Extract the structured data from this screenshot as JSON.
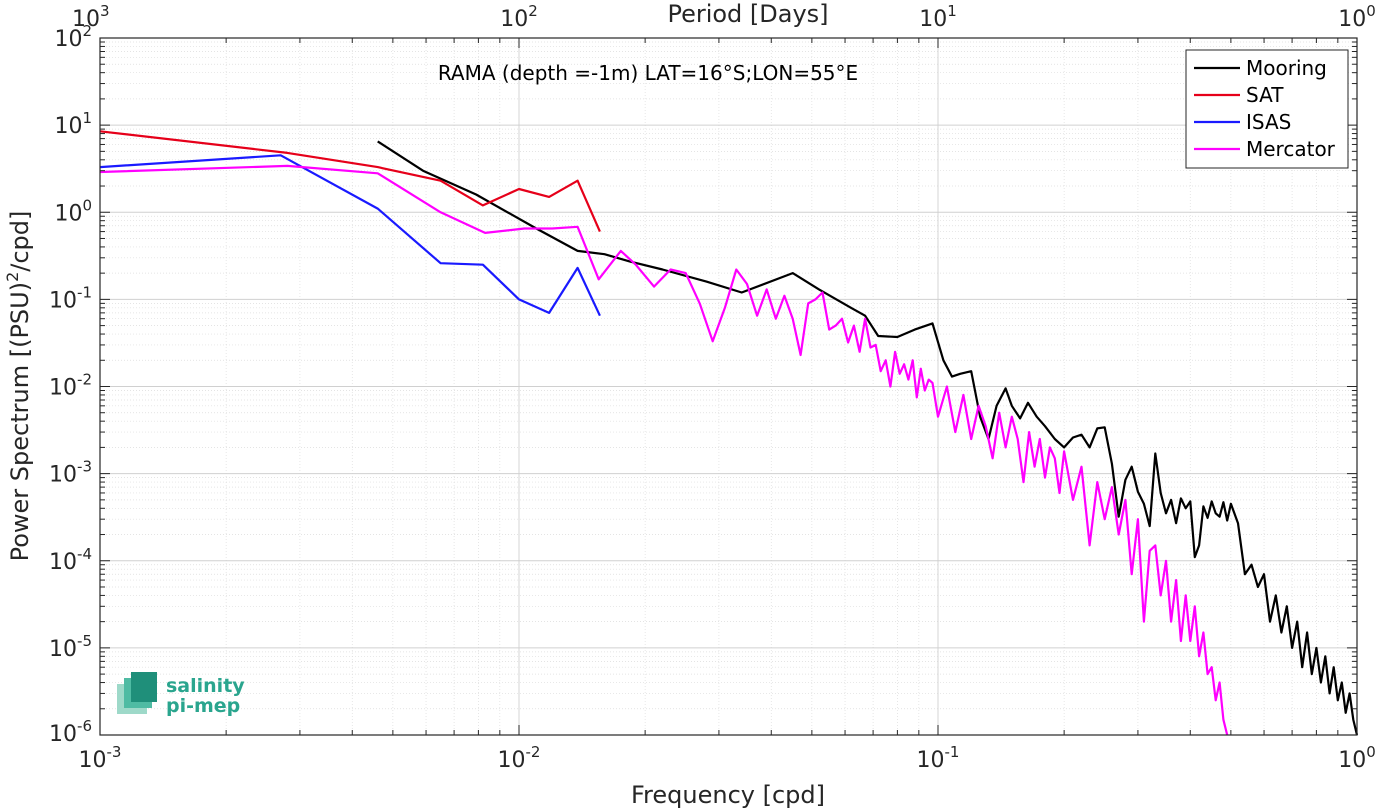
{
  "chart_data": {
    "type": "line",
    "title": "",
    "xlabel": "Frequency [cpd]",
    "ylabel": "Power Spectrum [(PSU)",
    "ylabel_sup": "2",
    "ylabel_suffix": "/cpd]",
    "top_xlabel": "Period [Days]",
    "xscale": "log",
    "yscale": "log",
    "xlim": [
      0.001,
      1
    ],
    "ylim": [
      1e-06,
      100
    ],
    "grid": true,
    "annotation": "RAMA (depth =-1m) LAT=16°S;LON=55°E",
    "x_ticks": [
      {
        "base": "10",
        "exp": "-3"
      },
      {
        "base": "10",
        "exp": "-2"
      },
      {
        "base": "10",
        "exp": "-1"
      },
      {
        "base": "10",
        "exp": "0"
      }
    ],
    "top_ticks": [
      {
        "base": "10",
        "exp": "3"
      },
      {
        "base": "10",
        "exp": "2"
      },
      {
        "base": "10",
        "exp": "1"
      },
      {
        "base": "10",
        "exp": "0"
      }
    ],
    "y_ticks": [
      {
        "base": "10",
        "exp": "2"
      },
      {
        "base": "10",
        "exp": "1"
      },
      {
        "base": "10",
        "exp": "0"
      },
      {
        "base": "10",
        "exp": "-1"
      },
      {
        "base": "10",
        "exp": "-2"
      },
      {
        "base": "10",
        "exp": "-3"
      },
      {
        "base": "10",
        "exp": "-4"
      },
      {
        "base": "10",
        "exp": "-5"
      },
      {
        "base": "10",
        "exp": "-6"
      }
    ],
    "legend_position": "top-right",
    "series": [
      {
        "name": "Mooring",
        "color": "#000000",
        "x": [
          0.0046,
          0.0059,
          0.0079,
          0.011,
          0.0138,
          0.016,
          0.0185,
          0.022,
          0.028,
          0.034,
          0.045,
          0.052,
          0.062,
          0.067,
          0.072,
          0.08,
          0.088,
          0.097,
          0.103,
          0.108,
          0.113,
          0.12,
          0.126,
          0.132,
          0.138,
          0.145,
          0.15,
          0.157,
          0.164,
          0.172,
          0.18,
          0.19,
          0.2,
          0.21,
          0.22,
          0.23,
          0.24,
          0.25,
          0.26,
          0.27,
          0.28,
          0.29,
          0.3,
          0.31,
          0.32,
          0.33,
          0.34,
          0.35,
          0.36,
          0.37,
          0.38,
          0.39,
          0.4,
          0.41,
          0.42,
          0.43,
          0.44,
          0.45,
          0.46,
          0.47,
          0.48,
          0.49,
          0.5,
          0.52,
          0.54,
          0.56,
          0.58,
          0.6,
          0.62,
          0.64,
          0.66,
          0.68,
          0.7,
          0.72,
          0.74,
          0.76,
          0.78,
          0.8,
          0.82,
          0.84,
          0.86,
          0.88,
          0.9,
          0.92,
          0.94,
          0.96,
          0.98,
          1.0
        ],
        "values": [
          6.5,
          3.0,
          1.6,
          0.65,
          0.36,
          0.33,
          0.27,
          0.22,
          0.16,
          0.12,
          0.2,
          0.13,
          0.08,
          0.065,
          0.038,
          0.037,
          0.045,
          0.053,
          0.02,
          0.013,
          0.014,
          0.015,
          0.0045,
          0.0025,
          0.006,
          0.0095,
          0.006,
          0.0043,
          0.0065,
          0.0045,
          0.0035,
          0.0025,
          0.002,
          0.0026,
          0.0028,
          0.002,
          0.0033,
          0.0034,
          0.0013,
          0.00032,
          0.00085,
          0.0012,
          0.00062,
          0.00045,
          0.00025,
          0.0017,
          0.0006,
          0.00035,
          0.0005,
          0.00027,
          0.00052,
          0.0004,
          0.00048,
          0.00011,
          0.00015,
          0.00042,
          0.00031,
          0.00048,
          0.00035,
          0.00032,
          0.00047,
          0.00029,
          0.00045,
          0.00027,
          7e-05,
          9e-05,
          5e-05,
          7e-05,
          2e-05,
          4e-05,
          1.5e-05,
          3e-05,
          1e-05,
          2e-05,
          6e-06,
          1.5e-05,
          5e-06,
          1e-05,
          4e-06,
          8e-06,
          3e-06,
          6e-06,
          2.5e-06,
          4e-06,
          1.8e-06,
          3e-06,
          1.5e-06,
          1e-06
        ]
      },
      {
        "name": "SAT",
        "color": "#e6001a",
        "x": [
          0.001,
          0.0028,
          0.0046,
          0.0065,
          0.0082,
          0.01,
          0.0118,
          0.0138,
          0.0156
        ],
        "values": [
          8.5,
          4.8,
          3.3,
          2.3,
          1.2,
          1.85,
          1.5,
          2.3,
          0.6
        ]
      },
      {
        "name": "ISAS",
        "color": "#1a1aff",
        "x": [
          0.001,
          0.0027,
          0.0046,
          0.0065,
          0.0082,
          0.01,
          0.0118,
          0.0138,
          0.0156
        ],
        "values": [
          3.3,
          4.5,
          1.1,
          0.26,
          0.25,
          0.1,
          0.07,
          0.23,
          0.065
        ]
      },
      {
        "name": "Mercator",
        "color": "#ff00ff",
        "x": [
          0.001,
          0.0028,
          0.0046,
          0.0065,
          0.0083,
          0.0103,
          0.012,
          0.0138,
          0.0155,
          0.0175,
          0.019,
          0.021,
          0.023,
          0.025,
          0.027,
          0.029,
          0.031,
          0.033,
          0.035,
          0.037,
          0.039,
          0.041,
          0.043,
          0.045,
          0.047,
          0.049,
          0.051,
          0.053,
          0.055,
          0.057,
          0.059,
          0.061,
          0.063,
          0.065,
          0.067,
          0.069,
          0.071,
          0.073,
          0.075,
          0.077,
          0.079,
          0.081,
          0.083,
          0.085,
          0.087,
          0.089,
          0.091,
          0.093,
          0.095,
          0.097,
          0.1,
          0.105,
          0.11,
          0.115,
          0.12,
          0.125,
          0.13,
          0.135,
          0.14,
          0.145,
          0.15,
          0.155,
          0.16,
          0.165,
          0.17,
          0.175,
          0.18,
          0.185,
          0.19,
          0.195,
          0.2,
          0.21,
          0.22,
          0.23,
          0.24,
          0.25,
          0.26,
          0.27,
          0.28,
          0.29,
          0.3,
          0.31,
          0.32,
          0.33,
          0.34,
          0.35,
          0.36,
          0.37,
          0.38,
          0.39,
          0.4,
          0.41,
          0.42,
          0.43,
          0.44,
          0.45,
          0.46,
          0.47,
          0.48,
          0.49
        ],
        "values": [
          2.9,
          3.4,
          2.8,
          1.0,
          0.58,
          0.65,
          0.65,
          0.68,
          0.17,
          0.36,
          0.25,
          0.14,
          0.22,
          0.2,
          0.09,
          0.033,
          0.08,
          0.22,
          0.15,
          0.065,
          0.13,
          0.06,
          0.11,
          0.06,
          0.023,
          0.09,
          0.1,
          0.12,
          0.045,
          0.05,
          0.06,
          0.032,
          0.05,
          0.025,
          0.06,
          0.028,
          0.03,
          0.015,
          0.02,
          0.01,
          0.025,
          0.014,
          0.018,
          0.012,
          0.02,
          0.0075,
          0.016,
          0.009,
          0.012,
          0.011,
          0.0045,
          0.01,
          0.003,
          0.008,
          0.0025,
          0.006,
          0.0035,
          0.0015,
          0.005,
          0.002,
          0.0045,
          0.0025,
          0.0008,
          0.003,
          0.0012,
          0.0025,
          0.0009,
          0.002,
          0.0015,
          0.0006,
          0.0018,
          0.0005,
          0.0012,
          0.00015,
          0.0008,
          0.0003,
          0.0007,
          0.0002,
          0.0005,
          7e-05,
          0.0003,
          2e-05,
          0.00013,
          0.00015,
          4e-05,
          0.0001,
          2e-05,
          6e-05,
          1.2e-05,
          4e-05,
          1.2e-05,
          3e-05,
          8e-06,
          1.5e-05,
          5e-06,
          6e-06,
          2.5e-06,
          4e-06,
          1.5e-06,
          1e-06
        ]
      }
    ]
  },
  "logo": {
    "line1": "salinity",
    "line2": "pi-mep",
    "color": "#2aa58e"
  }
}
